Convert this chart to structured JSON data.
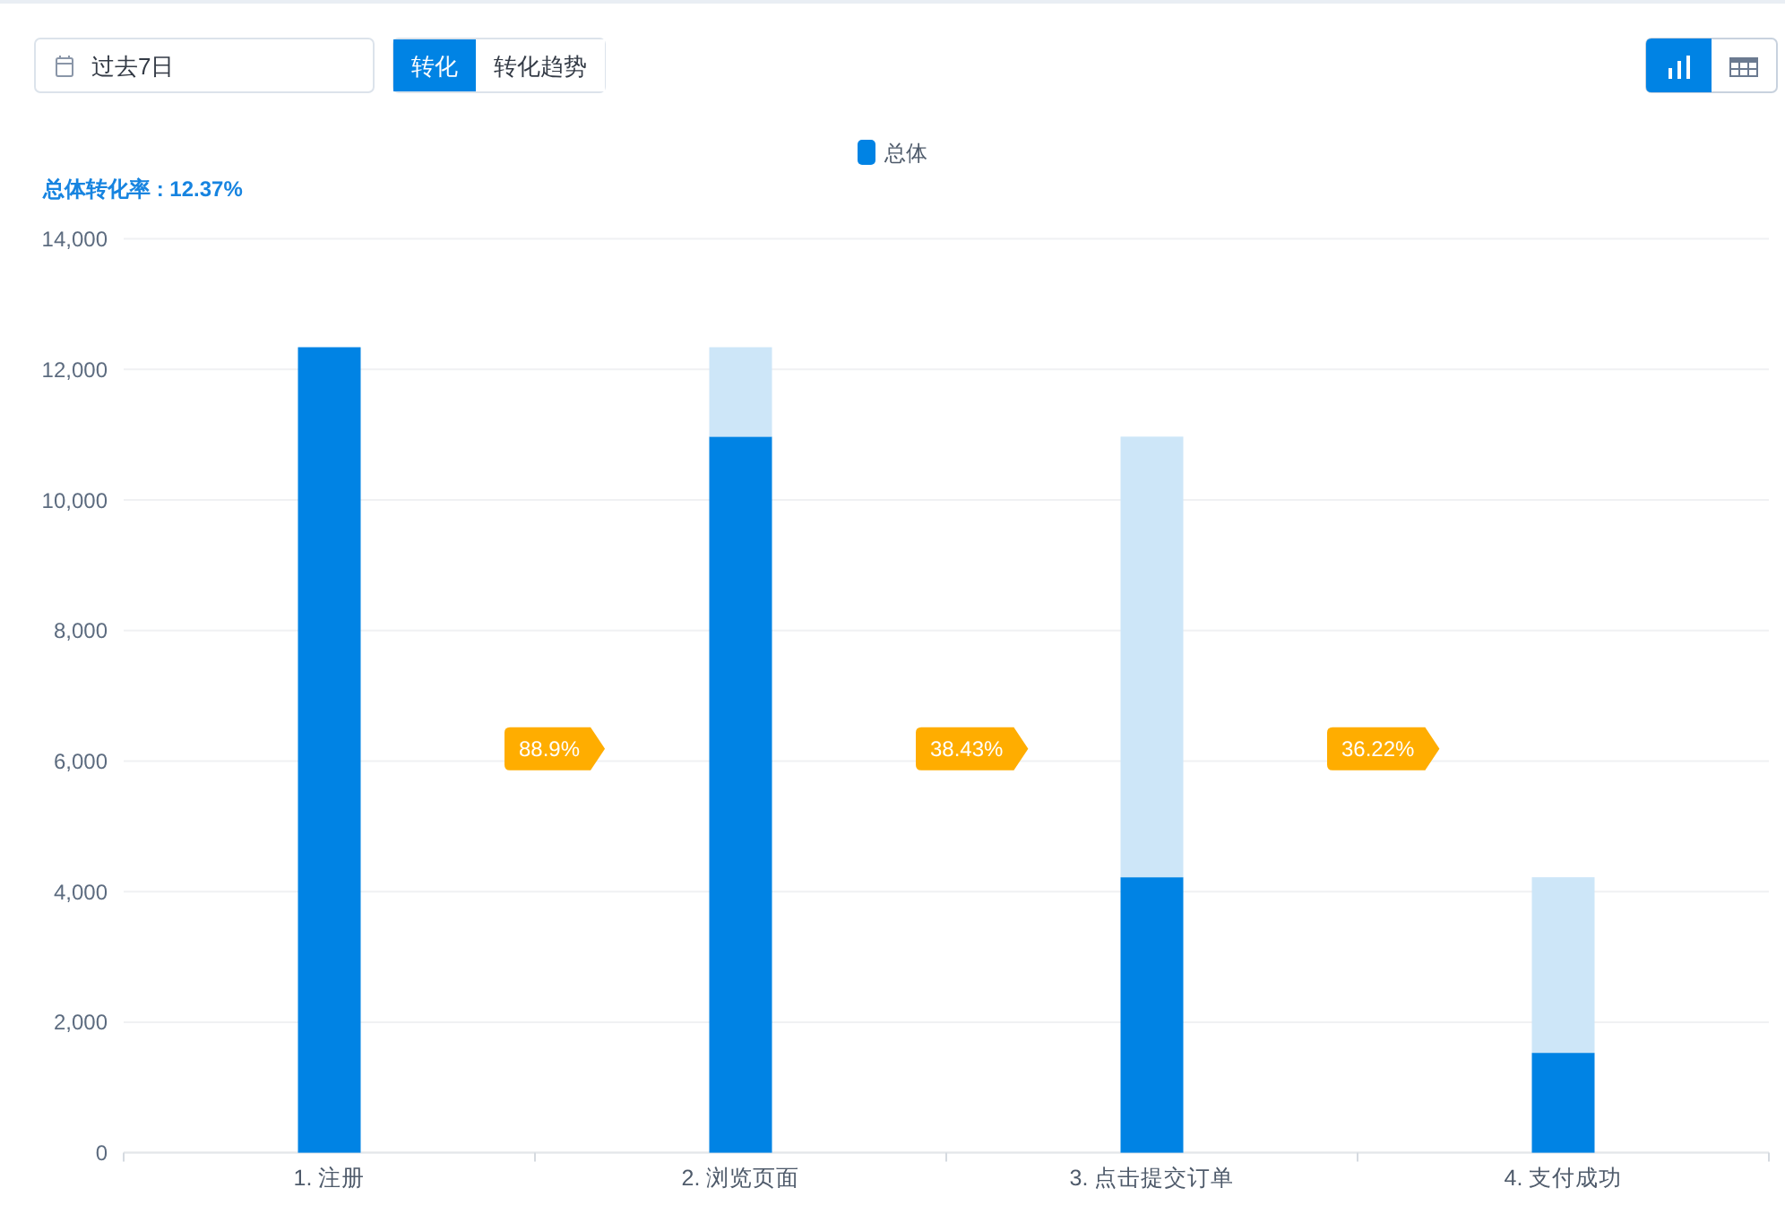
{
  "chart_data": {
    "type": "bar",
    "subtitle": "总体转化率 : 12.37%",
    "categories": [
      "1. 注册",
      "2. 浏览页面",
      "3. 点击提交订单",
      "4. 支付成功"
    ],
    "series": [
      {
        "name": "总体",
        "color": "#0083e4",
        "values": [
          12340,
          10970,
          4220,
          1530
        ]
      },
      {
        "color": "#cde6f8",
        "values": [
          null,
          1370,
          6750,
          2690
        ]
      }
    ],
    "stacked": true,
    "ylim": [
      0,
      14000
    ],
    "yticks": [
      0,
      {
        "value": 2000,
        "label": "2,000"
      },
      {
        "value": 4000,
        "label": "4,000"
      },
      {
        "value": 6000,
        "label": "6,000"
      },
      {
        "value": 8000,
        "label": "8,000"
      },
      {
        "value": 10000,
        "label": "10,000"
      },
      {
        "value": 12000,
        "label": "12,000"
      },
      {
        "value": 14000,
        "label": "14,000"
      }
    ],
    "grid": "y",
    "legend": "top",
    "annotations": [
      "过去7日",
      "转化",
      "转化趋势",
      "88.9%",
      "38.43%",
      "36.22%"
    ]
  }
}
